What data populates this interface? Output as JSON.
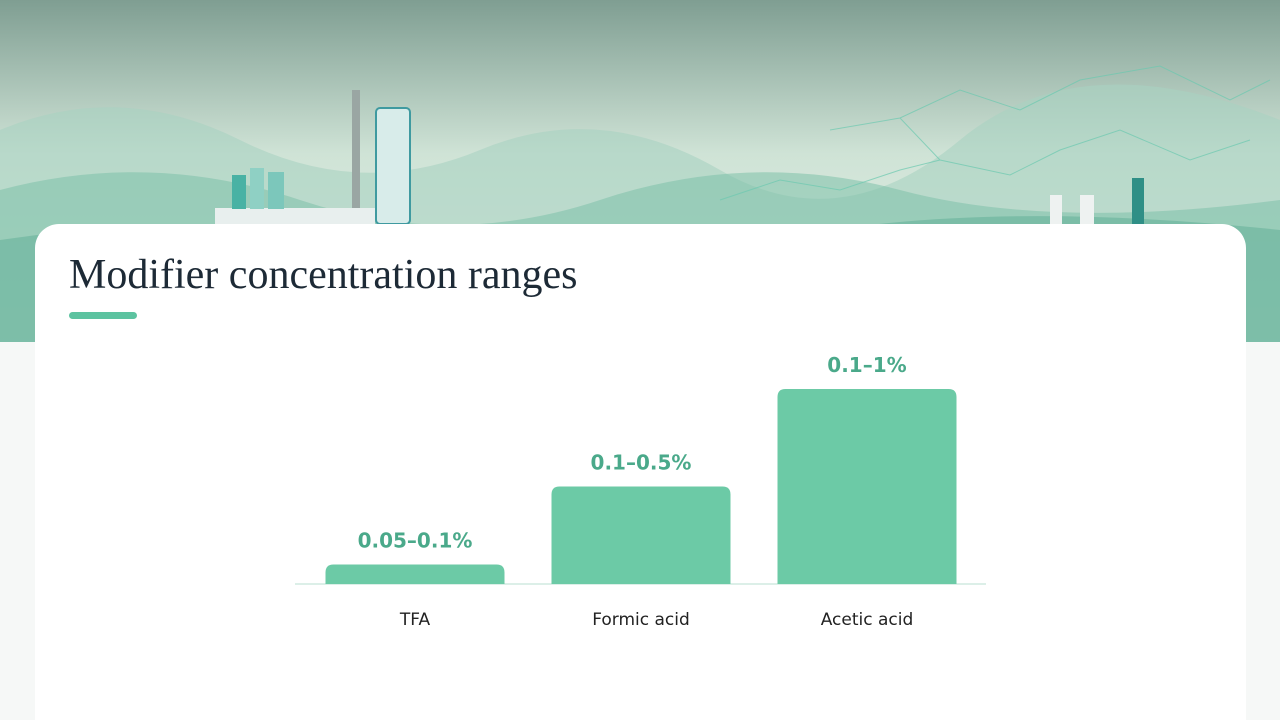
{
  "chart_data": {
    "type": "bar",
    "title": "Modifier concentration ranges",
    "categories": [
      "TFA",
      "Formic acid",
      "Acetic acid"
    ],
    "values": [
      0.1,
      0.5,
      1
    ],
    "value_labels": [
      "0.05–0.1%",
      "0.1–0.5%",
      "0.1–1%"
    ],
    "color": "#6ccaa6"
  }
}
